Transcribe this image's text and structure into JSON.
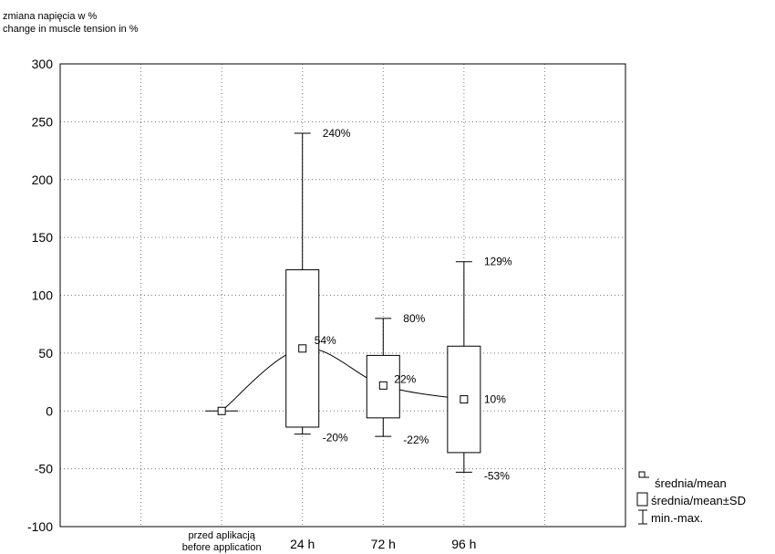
{
  "chart_data": {
    "type": "box",
    "ylabel": [
      "zmiana napięcia w %",
      "change in muscle tension in %"
    ],
    "xlabel": "",
    "ylim": [
      -100,
      300
    ],
    "yticks": [
      300,
      250,
      200,
      150,
      100,
      50,
      0,
      -50,
      -100
    ],
    "grid": true,
    "categories": [
      "",
      [
        "przed aplikacją",
        "before application"
      ],
      "24 h",
      "72 h",
      "96 h",
      ""
    ],
    "series": [
      {
        "category": [
          "przed aplikacją",
          "before application"
        ],
        "mean": 0,
        "sd_low": 0,
        "sd_high": 0,
        "min": 0,
        "max": 0,
        "labels": {
          "mean": "",
          "min": "",
          "max": ""
        }
      },
      {
        "category": "24 h",
        "mean": 54,
        "sd_low": -14,
        "sd_high": 122,
        "min": -20,
        "max": 240,
        "labels": {
          "mean": "54%",
          "min": "-20%",
          "max": "240%"
        }
      },
      {
        "category": "72 h",
        "mean": 22,
        "sd_low": -6,
        "sd_high": 48,
        "min": -22,
        "max": 80,
        "labels": {
          "mean": "22%",
          "min": "-22%",
          "max": "80%"
        }
      },
      {
        "category": "96 h",
        "mean": 10,
        "sd_low": -36,
        "sd_high": 56,
        "min": -53,
        "max": 129,
        "labels": {
          "mean": "10%",
          "min": "-53%",
          "max": "129%"
        }
      }
    ],
    "legend": {
      "position": "bottom-right",
      "items": [
        "średnia/mean",
        "średnia/mean±SD",
        "min.-max."
      ]
    }
  }
}
